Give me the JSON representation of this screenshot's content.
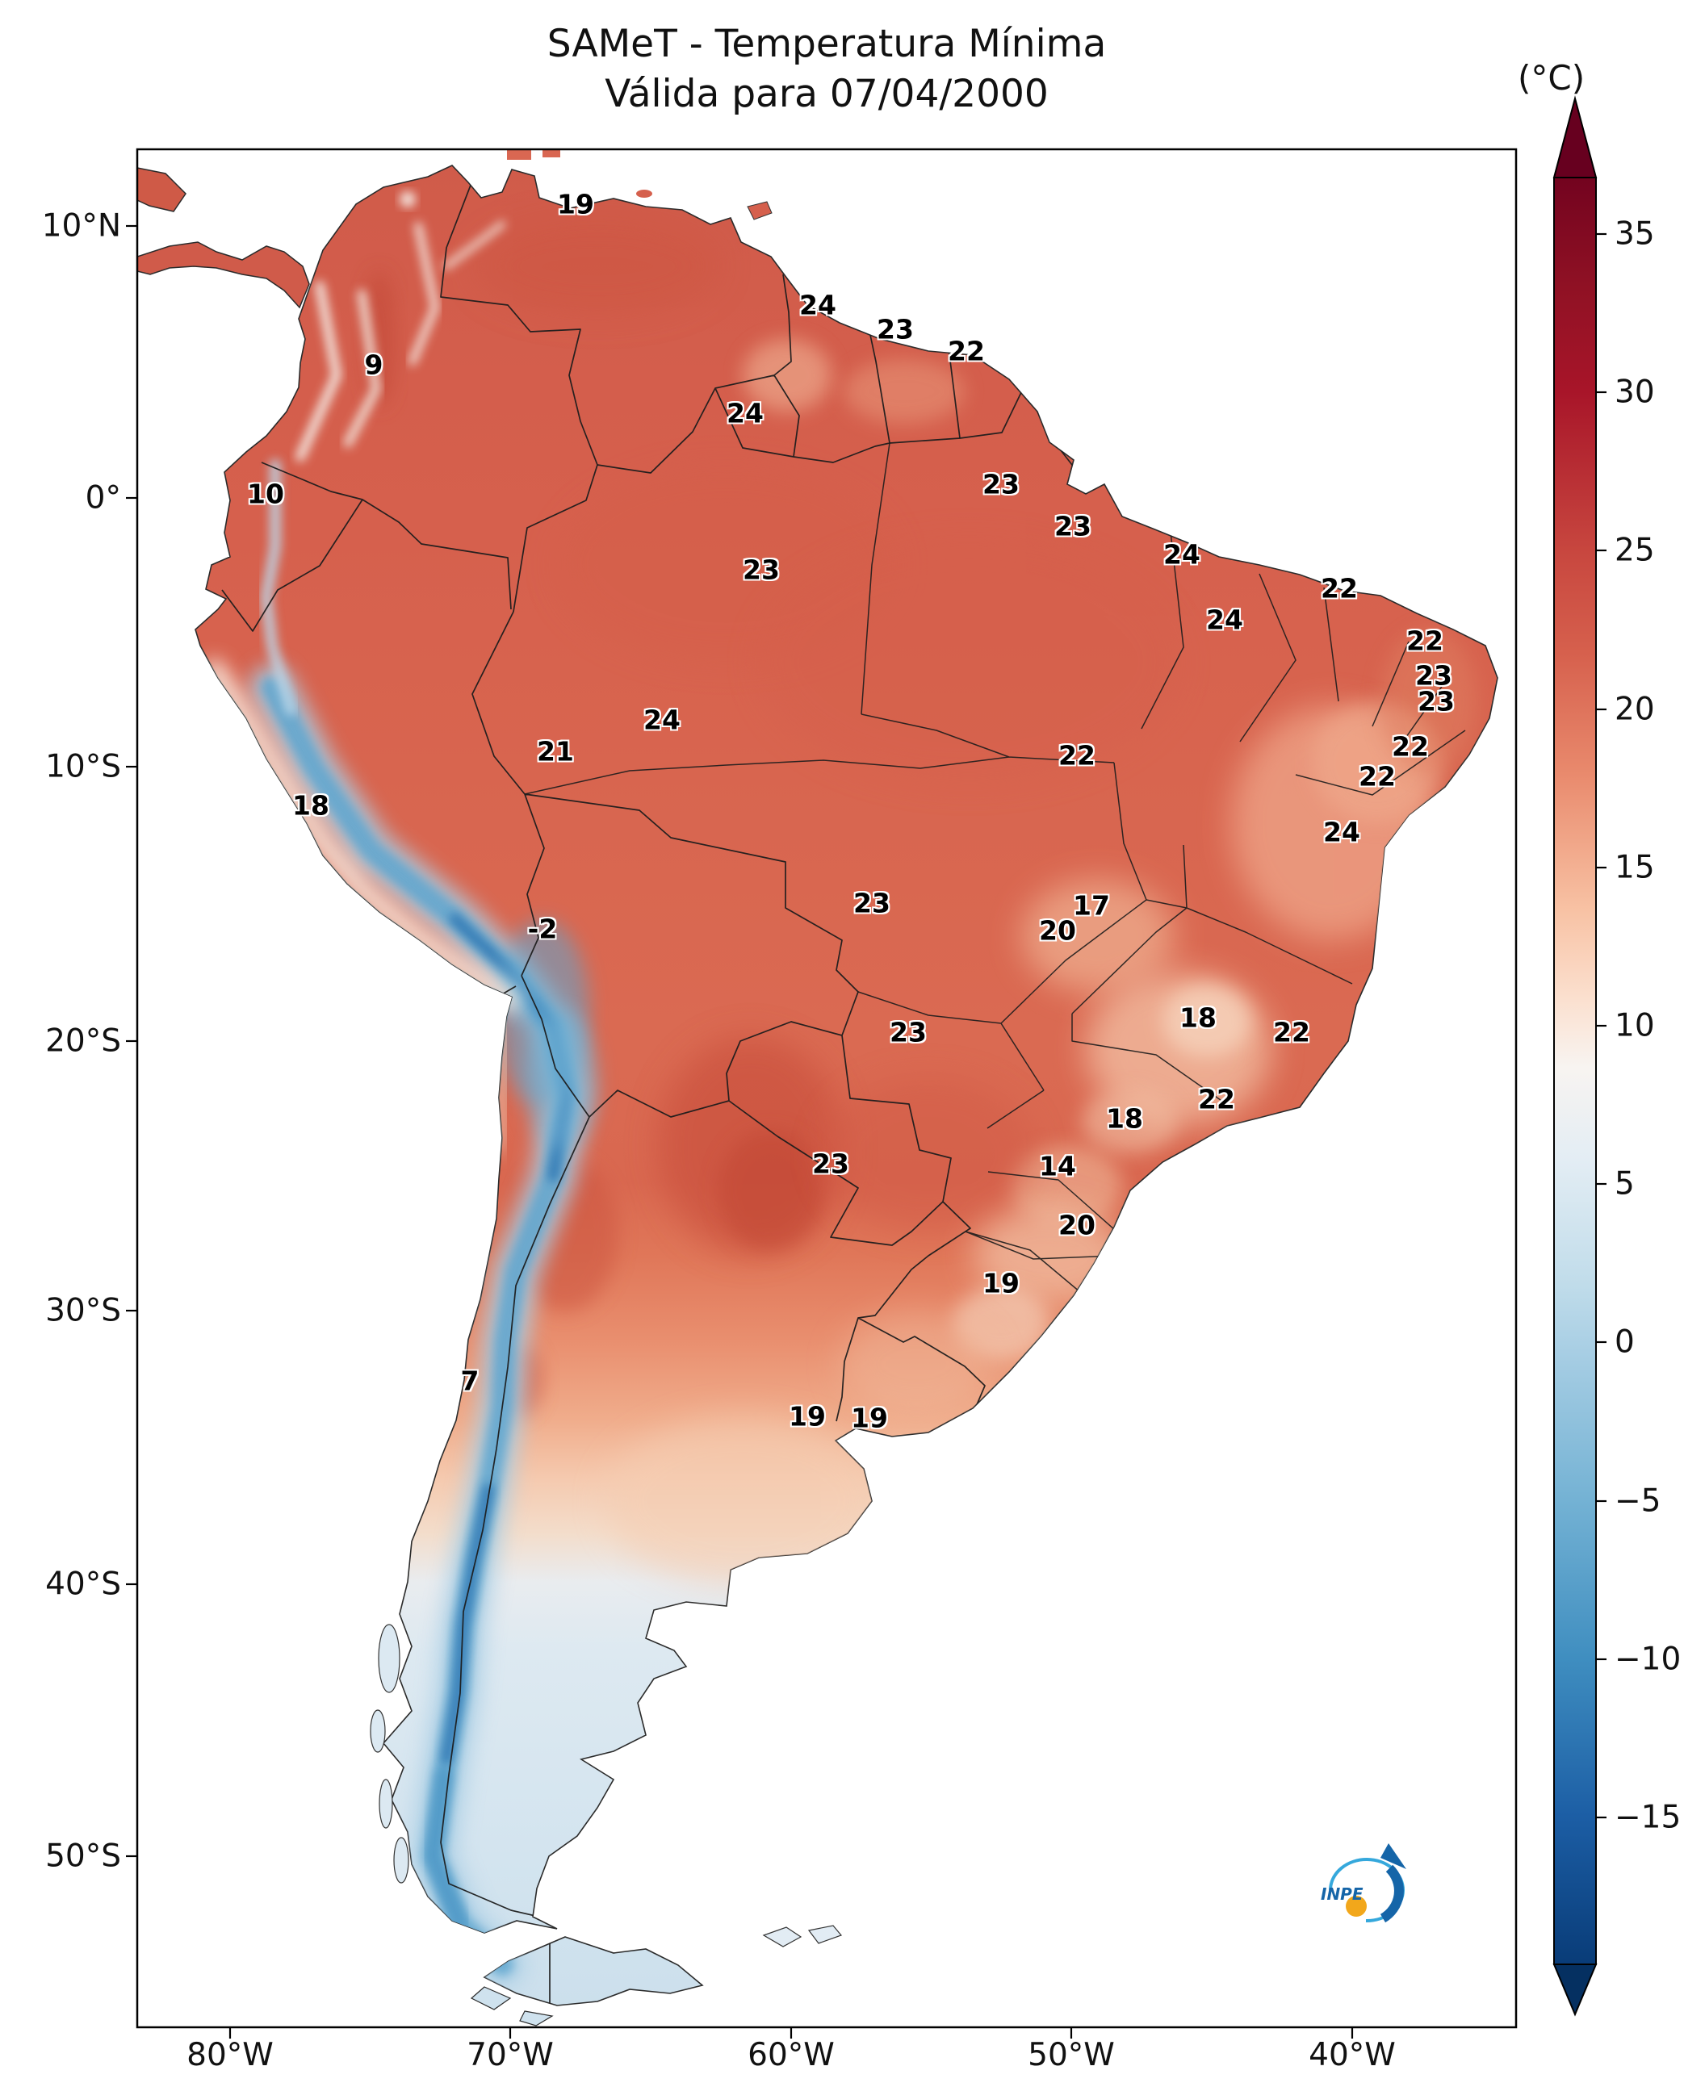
{
  "title": {
    "line1": "SAMeT - Temperatura Mínima",
    "line2": "Válida para 07/04/2000"
  },
  "colorbar": {
    "unit": "(°C)",
    "ticks": [
      "35",
      "30",
      "25",
      "20",
      "15",
      "10",
      "5",
      "0",
      "−5",
      "−10",
      "−15"
    ]
  },
  "axes": {
    "y_ticks": [
      {
        "label": "10°N",
        "y": 280
      },
      {
        "label": "0°",
        "y": 617
      },
      {
        "label": "10°S",
        "y": 950
      },
      {
        "label": "20°S",
        "y": 1290
      },
      {
        "label": "30°S",
        "y": 1624
      },
      {
        "label": "40°S",
        "y": 1963
      },
      {
        "label": "50°S",
        "y": 2300
      }
    ],
    "x_ticks": [
      {
        "label": "80°W",
        "x": 285
      },
      {
        "label": "70°W",
        "x": 632
      },
      {
        "label": "60°W",
        "x": 980
      },
      {
        "label": "50°W",
        "x": 1327
      },
      {
        "label": "40°W",
        "x": 1675
      }
    ]
  },
  "logo": {
    "text": "INPE"
  },
  "chart_data": {
    "type": "map",
    "title": "SAMeT - Temperatura Mínima",
    "subtitle": "Válida para 07/04/2000",
    "unit": "°C",
    "colorbar_ticks": [
      35,
      30,
      25,
      20,
      15,
      10,
      5,
      0,
      -5,
      -10,
      -15
    ],
    "lat_ticks": [
      "10°N",
      "0°",
      "10°S",
      "20°S",
      "30°S",
      "40°S",
      "50°S"
    ],
    "lon_ticks": [
      "80°W",
      "70°W",
      "60°W",
      "50°W",
      "40°W"
    ],
    "temperature_labels": [
      {
        "value": "19",
        "x": 713,
        "y": 253
      },
      {
        "value": "24",
        "x": 1013,
        "y": 378
      },
      {
        "value": "23",
        "x": 1109,
        "y": 408
      },
      {
        "value": "22",
        "x": 1197,
        "y": 435
      },
      {
        "value": "9",
        "x": 463,
        "y": 452
      },
      {
        "value": "24",
        "x": 923,
        "y": 512
      },
      {
        "value": "10",
        "x": 329,
        "y": 612
      },
      {
        "value": "23",
        "x": 1240,
        "y": 600
      },
      {
        "value": "23",
        "x": 1329,
        "y": 652
      },
      {
        "value": "23",
        "x": 943,
        "y": 706
      },
      {
        "value": "24",
        "x": 1464,
        "y": 687
      },
      {
        "value": "24",
        "x": 1517,
        "y": 768
      },
      {
        "value": "22",
        "x": 1659,
        "y": 729
      },
      {
        "value": "22",
        "x": 1765,
        "y": 794
      },
      {
        "value": "23",
        "x": 1776,
        "y": 837
      },
      {
        "value": "23",
        "x": 1779,
        "y": 869
      },
      {
        "value": "24",
        "x": 820,
        "y": 892
      },
      {
        "value": "21",
        "x": 688,
        "y": 931
      },
      {
        "value": "22",
        "x": 1334,
        "y": 936
      },
      {
        "value": "22",
        "x": 1747,
        "y": 925
      },
      {
        "value": "22",
        "x": 1706,
        "y": 962
      },
      {
        "value": "18",
        "x": 385,
        "y": 998
      },
      {
        "value": "24",
        "x": 1662,
        "y": 1031
      },
      {
        "value": "23",
        "x": 1080,
        "y": 1119
      },
      {
        "value": "17",
        "x": 1352,
        "y": 1122
      },
      {
        "value": "20",
        "x": 1310,
        "y": 1153
      },
      {
        "value": "-2",
        "x": 672,
        "y": 1151
      },
      {
        "value": "18",
        "x": 1484,
        "y": 1261
      },
      {
        "value": "22",
        "x": 1600,
        "y": 1279
      },
      {
        "value": "23",
        "x": 1125,
        "y": 1279
      },
      {
        "value": "22",
        "x": 1507,
        "y": 1362
      },
      {
        "value": "18",
        "x": 1393,
        "y": 1386
      },
      {
        "value": "23",
        "x": 1029,
        "y": 1442
      },
      {
        "value": "14",
        "x": 1310,
        "y": 1445
      },
      {
        "value": "20",
        "x": 1334,
        "y": 1518
      },
      {
        "value": "19",
        "x": 1240,
        "y": 1590
      },
      {
        "value": "7",
        "x": 582,
        "y": 1711
      },
      {
        "value": "19",
        "x": 1000,
        "y": 1755
      },
      {
        "value": "19",
        "x": 1077,
        "y": 1757
      }
    ]
  }
}
